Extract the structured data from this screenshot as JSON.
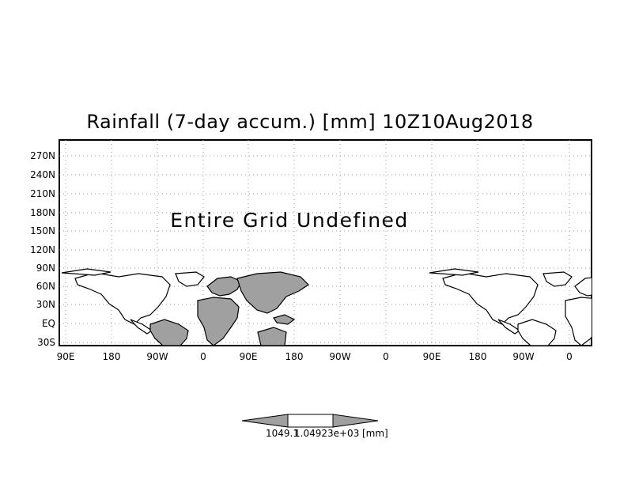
{
  "title": "Rainfall (7-day accum.) [mm] 10Z10Aug2018",
  "message": "Entire Grid Undefined",
  "lat_labels": [
    "270N",
    "240N",
    "210N",
    "180N",
    "150N",
    "120N",
    "90N",
    "60N",
    "30N",
    "EQ",
    "30S"
  ],
  "lon_labels": [
    "90E",
    "180",
    "90W",
    "0",
    "90E",
    "180",
    "90W",
    "0",
    "90E",
    "180",
    "90W",
    "0"
  ],
  "colorbar": {
    "low_label": "1049.1",
    "high_label": "1.04923e+03",
    "unit_label": "[mm]",
    "fill_color": "#a0a0a0"
  },
  "map": {
    "land_fill": "#a0a0a0",
    "coast_color": "#000000",
    "grid": "dotted"
  }
}
